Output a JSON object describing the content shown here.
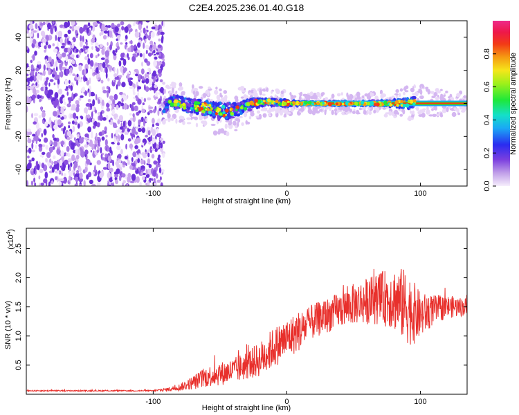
{
  "figure": {
    "title": "C2E4.2025.236.01.40.G18"
  },
  "chart_data": [
    {
      "type": "heatmap",
      "title": "C2E4.2025.236.01.40.G18",
      "xlabel": "Height of straight line (km)",
      "ylabel": "Frequency (Hz)",
      "xlim": [
        -195,
        135
      ],
      "ylim": [
        -50,
        50
      ],
      "xticks": [
        -100,
        0,
        100
      ],
      "xtick_labels": [
        "-100",
        "0",
        "100"
      ],
      "yticks": [
        -40,
        -20,
        0,
        20,
        40
      ],
      "ytick_labels": [
        "-40",
        "-20",
        "0",
        "20",
        "40"
      ],
      "noise_region_x": [
        -195,
        -92
      ],
      "signal_track": {
        "x": [
          -92,
          -85,
          -75,
          -65,
          -55,
          -45,
          -35,
          -25,
          -15,
          -5,
          0,
          10,
          20,
          40,
          60,
          80,
          90,
          96,
          135
        ],
        "frequency": [
          -1,
          1,
          -1,
          -2,
          -4,
          -5,
          -3,
          0,
          1,
          0,
          0,
          0,
          0,
          0,
          0,
          0,
          0,
          1,
          0
        ],
        "spread": [
          4,
          4,
          4,
          4,
          5,
          5,
          4,
          3,
          2,
          2,
          2,
          1,
          1,
          1,
          1,
          2,
          3,
          3,
          1
        ]
      },
      "colorbar": {
        "label": "Normalized spectral amplitude",
        "range": [
          0,
          1
        ],
        "ticks": [
          0.0,
          0.2,
          0.4,
          0.6,
          0.8
        ],
        "tick_labels": [
          "0.0",
          "0.2",
          "0.4",
          "0.6",
          "0.8"
        ]
      }
    },
    {
      "type": "line",
      "xlabel": "Height of straight line (km)",
      "ylabel": "SNR (10 * v/v)",
      "scale_label": "(x10",
      "scale_exponent": "4",
      "scale_suffix": ")",
      "xlim": [
        -195,
        135
      ],
      "ylim": [
        0,
        2.85
      ],
      "xticks": [
        -100,
        0,
        100
      ],
      "xtick_labels": [
        "-100",
        "0",
        "100"
      ],
      "yticks": [
        0.5,
        1.0,
        1.5,
        2.0,
        2.5
      ],
      "ytick_labels": [
        "0.5",
        "1.0",
        "1.5",
        "2.0",
        "2.5"
      ],
      "series": [
        {
          "name": "SNR",
          "color": "#e8302c",
          "envelope_x": [
            -195,
            -100,
            -90,
            -80,
            -70,
            -60,
            -50,
            -40,
            -30,
            -20,
            -10,
            0,
            10,
            20,
            30,
            40,
            50,
            60,
            70,
            80,
            90,
            95,
            100,
            110,
            120,
            135
          ],
          "envelope_mean": [
            0.06,
            0.06,
            0.08,
            0.12,
            0.2,
            0.3,
            0.35,
            0.4,
            0.5,
            0.6,
            0.8,
            0.95,
            1.1,
            1.25,
            1.35,
            1.45,
            1.55,
            1.6,
            1.65,
            1.65,
            1.5,
            1.4,
            1.35,
            1.45,
            1.5,
            1.5
          ],
          "envelope_spread": [
            0.01,
            0.01,
            0.03,
            0.06,
            0.12,
            0.18,
            0.2,
            0.22,
            0.25,
            0.3,
            0.35,
            0.35,
            0.35,
            0.3,
            0.3,
            0.3,
            0.35,
            0.4,
            0.45,
            0.55,
            0.65,
            0.55,
            0.4,
            0.25,
            0.2,
            0.15
          ]
        }
      ]
    }
  ]
}
